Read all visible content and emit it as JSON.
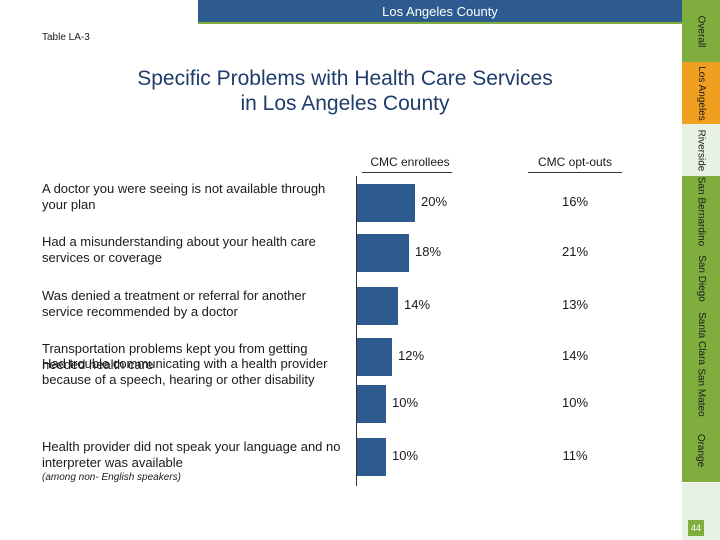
{
  "header": {
    "title": "Los Angeles County"
  },
  "table_id": "Table LA-3",
  "title": {
    "line1": "Specific Problems with Health Care Services",
    "line2": "in Los Angeles County"
  },
  "columns": {
    "enrollees": "CMC enrollees",
    "optouts": "CMC opt-outs"
  },
  "rows": [
    {
      "label": "A doctor you were seeing is not available through your plan",
      "enrollees": "20%",
      "optouts": "16%",
      "enrollees_value": 20
    },
    {
      "label": "Had a misunderstanding about your health care services or coverage",
      "enrollees": "18%",
      "optouts": "21%",
      "enrollees_value": 18
    },
    {
      "label": "Was denied a treatment or referral for another service recommended by a doctor",
      "enrollees": "14%",
      "optouts": "13%",
      "enrollees_value": 14
    },
    {
      "label": "Transportation problems kept you from getting needed health care",
      "enrollees": "12%",
      "optouts": "14%",
      "enrollees_value": 12
    },
    {
      "label": "Had trouble communicating with a health provider because of a speech, hearing or other disability",
      "enrollees": "10%",
      "optouts": "10%",
      "enrollees_value": 10
    },
    {
      "label": "Health provider did not speak your language and no interpreter was available",
      "enrollees": "10%",
      "optouts": "11%",
      "enrollees_value": 10
    }
  ],
  "row_sub_note": "(among non- English speakers)",
  "sidebar": {
    "tabs": [
      "Overall",
      "Los Angeles",
      "Riverside",
      "San Bernardino",
      "San Diego",
      "Santa Clara",
      "San Mateo",
      "Orange"
    ]
  },
  "page_number": "44",
  "colors": {
    "bar": "#2d5b8f",
    "sidebar_green": "#7fae3f",
    "sidebar_orange": "#f0a020"
  }
}
